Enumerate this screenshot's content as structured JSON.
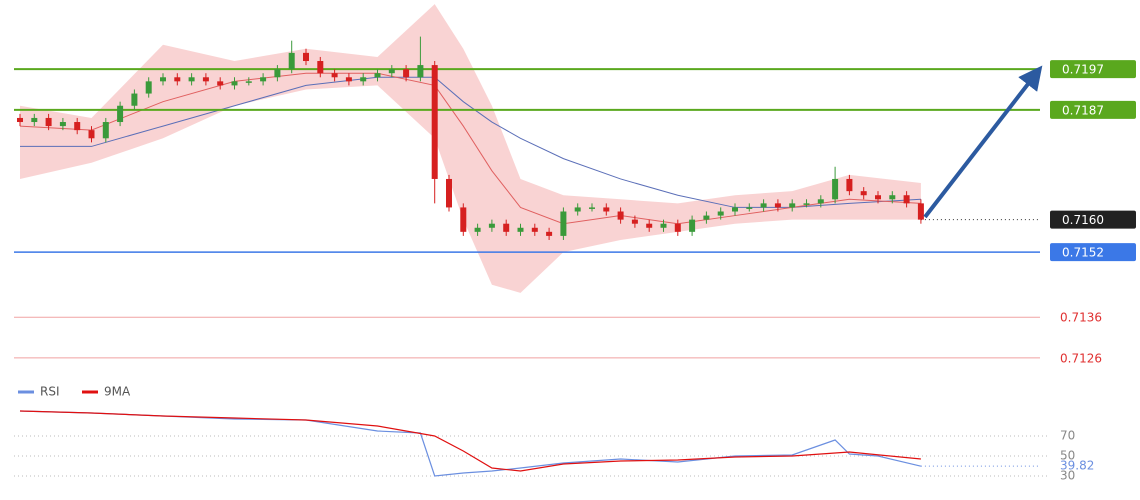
{
  "chart_data": [
    {
      "type": "candlestick",
      "ylim": [
        0.71218,
        0.7214
      ],
      "up_color": "#3a9a3a",
      "down_color": "#d62020",
      "open": [
        0.7185,
        0.7184,
        0.7185,
        0.7183,
        0.7184,
        0.7182,
        0.718,
        0.7184,
        0.7188,
        0.7191,
        0.7194,
        0.7195,
        0.7194,
        0.7195,
        0.7194,
        0.7193,
        0.7194,
        0.7194,
        0.7195,
        0.7197,
        0.7201,
        0.7199,
        0.7196,
        0.7195,
        0.7194,
        0.7195,
        0.7196,
        0.7197,
        0.7195,
        0.7198,
        0.717,
        0.7163,
        0.7157,
        0.7158,
        0.7159,
        0.7157,
        0.7158,
        0.7157,
        0.7156,
        0.7162,
        0.7163,
        0.7163,
        0.7162,
        0.716,
        0.7159,
        0.7158,
        0.7159,
        0.7157,
        0.716,
        0.7161,
        0.7162,
        0.7163,
        0.7163,
        0.7164,
        0.7163,
        0.7164,
        0.7164,
        0.7165,
        0.717,
        0.7167,
        0.7166,
        0.7165,
        0.7166,
        0.7164
      ],
      "high": [
        0.7186,
        0.7186,
        0.7186,
        0.7185,
        0.7185,
        0.7183,
        0.7185,
        0.7189,
        0.7192,
        0.7195,
        0.7196,
        0.7196,
        0.7196,
        0.7196,
        0.7195,
        0.7195,
        0.7195,
        0.7196,
        0.7198,
        0.7204,
        0.7202,
        0.72,
        0.7197,
        0.7196,
        0.7196,
        0.7197,
        0.7198,
        0.7198,
        0.7205,
        0.7199,
        0.7171,
        0.7164,
        0.7159,
        0.716,
        0.716,
        0.7159,
        0.7159,
        0.7158,
        0.7163,
        0.7164,
        0.7164,
        0.7164,
        0.7163,
        0.7161,
        0.716,
        0.716,
        0.716,
        0.7161,
        0.7162,
        0.7163,
        0.7164,
        0.7164,
        0.7165,
        0.7165,
        0.7165,
        0.7165,
        0.7166,
        0.7173,
        0.7171,
        0.7168,
        0.7167,
        0.7167,
        0.7167,
        0.7165
      ],
      "low": [
        0.7183,
        0.7183,
        0.7182,
        0.7182,
        0.7181,
        0.7179,
        0.7179,
        0.7183,
        0.7187,
        0.719,
        0.7193,
        0.7193,
        0.7193,
        0.7193,
        0.7192,
        0.7192,
        0.7193,
        0.7193,
        0.7194,
        0.7196,
        0.7198,
        0.7195,
        0.7194,
        0.7193,
        0.7193,
        0.7194,
        0.7195,
        0.7194,
        0.7194,
        0.7164,
        0.7162,
        0.7156,
        0.7156,
        0.7157,
        0.7156,
        0.7156,
        0.7156,
        0.7155,
        0.7155,
        0.7161,
        0.7162,
        0.7161,
        0.7159,
        0.7158,
        0.7157,
        0.7157,
        0.7156,
        0.7156,
        0.7159,
        0.716,
        0.7161,
        0.7162,
        0.7162,
        0.7162,
        0.7162,
        0.7163,
        0.7163,
        0.7164,
        0.7166,
        0.7165,
        0.7164,
        0.7164,
        0.7163,
        0.7159
      ],
      "close": [
        0.7184,
        0.7185,
        0.7183,
        0.7184,
        0.7182,
        0.718,
        0.7184,
        0.7188,
        0.7191,
        0.7194,
        0.7195,
        0.7194,
        0.7195,
        0.7194,
        0.7193,
        0.7194,
        0.7194,
        0.7195,
        0.7197,
        0.7201,
        0.7199,
        0.7196,
        0.7195,
        0.7194,
        0.7195,
        0.7196,
        0.7197,
        0.7195,
        0.7198,
        0.717,
        0.7163,
        0.7157,
        0.7158,
        0.7159,
        0.7157,
        0.7158,
        0.7157,
        0.7156,
        0.7162,
        0.7163,
        0.7163,
        0.7162,
        0.716,
        0.7159,
        0.7158,
        0.7159,
        0.7157,
        0.716,
        0.7161,
        0.7162,
        0.7163,
        0.7163,
        0.7164,
        0.7163,
        0.7164,
        0.7164,
        0.7165,
        0.717,
        0.7167,
        0.7166,
        0.7165,
        0.7166,
        0.7164,
        0.716
      ],
      "band": {
        "color": "#f7c4c4",
        "x": [
          0,
          5,
          10,
          15,
          20,
          25,
          29,
          31,
          33,
          35,
          38,
          42,
          46,
          50,
          54,
          58,
          63
        ],
        "upper": [
          0.7188,
          0.7185,
          0.7203,
          0.7199,
          0.7202,
          0.72,
          0.7213,
          0.7202,
          0.7188,
          0.717,
          0.7166,
          0.7165,
          0.7164,
          0.7166,
          0.7167,
          0.7171,
          0.7169
        ],
        "lower": [
          0.717,
          0.7174,
          0.718,
          0.7188,
          0.7192,
          0.7193,
          0.718,
          0.716,
          0.7144,
          0.7142,
          0.7152,
          0.7155,
          0.7157,
          0.7159,
          0.716,
          0.716,
          0.716
        ]
      },
      "overlays": [
        {
          "color": "#5b6fb8",
          "x": [
            0,
            5,
            10,
            15,
            20,
            25,
            29,
            31,
            33,
            35,
            38,
            42,
            46,
            50,
            54,
            58,
            63
          ],
          "values": [
            0.7178,
            0.7178,
            0.7183,
            0.7188,
            0.7193,
            0.7195,
            0.7195,
            0.7189,
            0.7184,
            0.718,
            0.7175,
            0.717,
            0.7166,
            0.7163,
            0.7163,
            0.7164,
            0.7165
          ]
        },
        {
          "color": "#e06060",
          "x": [
            0,
            5,
            10,
            15,
            20,
            25,
            29,
            31,
            33,
            35,
            38,
            42,
            46,
            50,
            54,
            58,
            63
          ],
          "values": [
            0.7183,
            0.7182,
            0.7189,
            0.7194,
            0.7196,
            0.7196,
            0.7193,
            0.7183,
            0.7172,
            0.7163,
            0.7159,
            0.7161,
            0.7159,
            0.7161,
            0.7163,
            0.7165,
            0.7164
          ]
        }
      ],
      "levels": [
        {
          "value": 0.7197,
          "label": "0.7197",
          "color": "#5aa81e",
          "style": "box"
        },
        {
          "value": 0.7187,
          "label": "0.7187",
          "color": "#5aa81e",
          "style": "box"
        },
        {
          "value": 0.716,
          "label": "0.7160",
          "color": "#222222",
          "style": "current"
        },
        {
          "value": 0.7152,
          "label": "0.7152",
          "color": "#3b78e7",
          "style": "box"
        },
        {
          "value": 0.7136,
          "label": "0.7136",
          "color": "#e03030",
          "style": "text"
        },
        {
          "value": 0.7126,
          "label": "0.7126",
          "color": "#e03030",
          "style": "text"
        }
      ]
    },
    {
      "type": "line",
      "ylim": [
        20,
        100
      ],
      "yticks": [
        30,
        50,
        70
      ],
      "series": [
        {
          "name": "RSI",
          "color": "#6b8fe0",
          "x": [
            0,
            5,
            10,
            15,
            20,
            25,
            28,
            29,
            31,
            33,
            35,
            38,
            42,
            46,
            50,
            54,
            57,
            58,
            60,
            63
          ],
          "values": [
            95,
            93,
            90,
            87,
            86,
            75,
            73,
            30,
            33,
            35,
            38,
            43,
            47,
            44,
            50,
            51,
            66,
            52,
            50,
            39.82
          ]
        },
        {
          "name": "9MA",
          "color": "#e01010",
          "x": [
            0,
            5,
            10,
            15,
            20,
            25,
            29,
            31,
            33,
            35,
            38,
            42,
            46,
            50,
            54,
            58,
            63
          ],
          "values": [
            95,
            93,
            90,
            88,
            86,
            80,
            70,
            55,
            38,
            35,
            42,
            45,
            46,
            49,
            50,
            54,
            47
          ]
        }
      ]
    }
  ]
}
